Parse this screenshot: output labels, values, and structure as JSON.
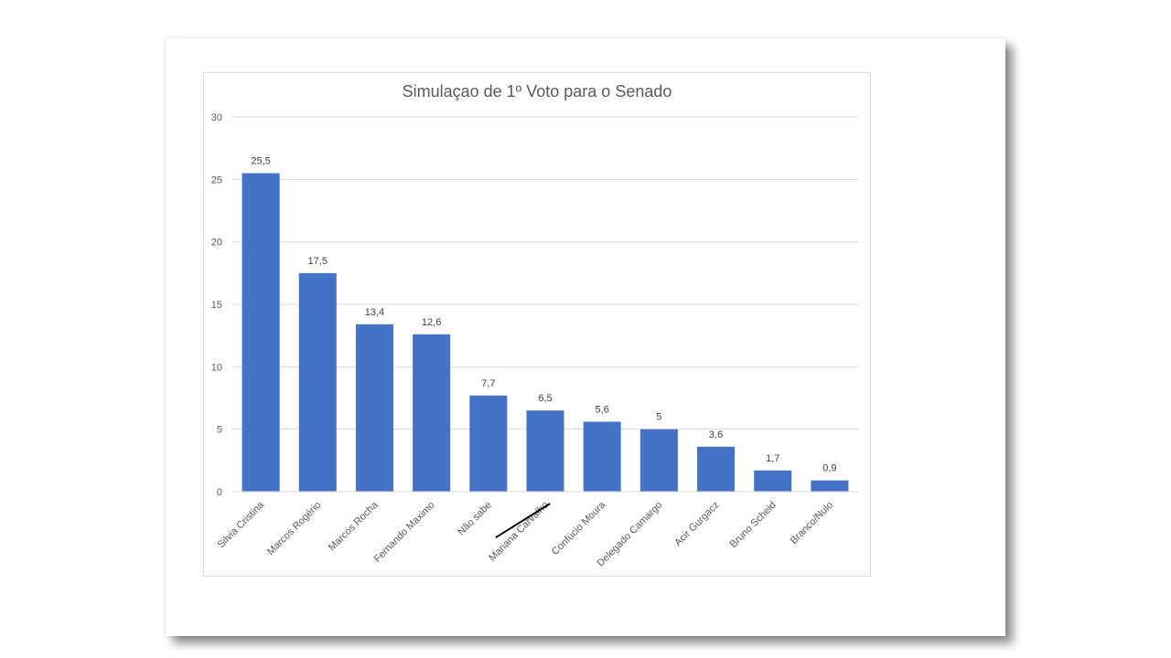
{
  "chart_data": {
    "type": "bar",
    "title": "Simulaçao de 1º Voto para o Senado",
    "xlabel": "",
    "ylabel": "",
    "ylim": [
      0,
      30
    ],
    "yticks": [
      0,
      5,
      10,
      15,
      20,
      25,
      30
    ],
    "categories": [
      "Silvia Cristina",
      "Marcos Rogério",
      "Marcos Rocha",
      "Fernando Maximo",
      "Não sabe",
      "Mariana Carvalho",
      "Confúcio Moura",
      "Delegado Camargo",
      "Acir Gurgacz",
      "Bruno Scheid",
      "Branco/Nulo"
    ],
    "values": [
      25.5,
      17.5,
      13.4,
      12.6,
      7.7,
      6.5,
      5.6,
      5,
      3.6,
      1.7,
      0.9
    ],
    "value_labels": [
      "25,5",
      "17,5",
      "13,4",
      "12,6",
      "7,7",
      "6,5",
      "5,6",
      "5",
      "3,6",
      "1,7",
      "0,9"
    ],
    "struck_categories": [
      "Mariana Carvalho"
    ],
    "bar_color": "#4472C4",
    "grid": true,
    "legend": "none"
  }
}
